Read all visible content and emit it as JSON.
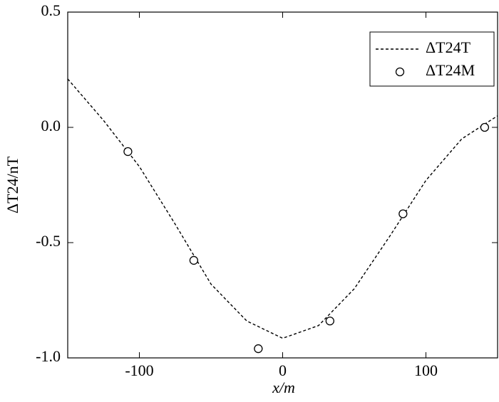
{
  "chart_data": {
    "type": "line",
    "xlabel": "x/m",
    "ylabel": "ΔT24/nT",
    "xlim": [
      -150,
      150
    ],
    "ylim": [
      -1,
      0.5
    ],
    "xticks": [
      -100,
      0,
      100
    ],
    "yticks": [
      0.5,
      {
        "value": 0,
        "label": "0.0"
      },
      -0.5,
      {
        "value": -1,
        "label": "-1.0"
      }
    ],
    "legend": "upper right",
    "series": [
      {
        "name": "ΔT24T",
        "color": "#000000",
        "style": "dashed",
        "x": [
          -150,
          -125,
          -100,
          -75,
          -50,
          -25,
          0,
          25,
          50,
          75,
          100,
          125,
          150
        ],
        "values": [
          0.21,
          0.03,
          -0.17,
          -0.42,
          -0.68,
          -0.84,
          -0.915,
          -0.86,
          -0.7,
          -0.47,
          -0.23,
          -0.05,
          0.05
        ]
      },
      {
        "name": "ΔT24M",
        "color": "#000000",
        "style": "markers",
        "x": [
          -108,
          -62,
          -17,
          33,
          84,
          141
        ],
        "values": [
          -0.105,
          -0.577,
          -0.96,
          -0.84,
          -0.375,
          0.0
        ]
      }
    ]
  }
}
